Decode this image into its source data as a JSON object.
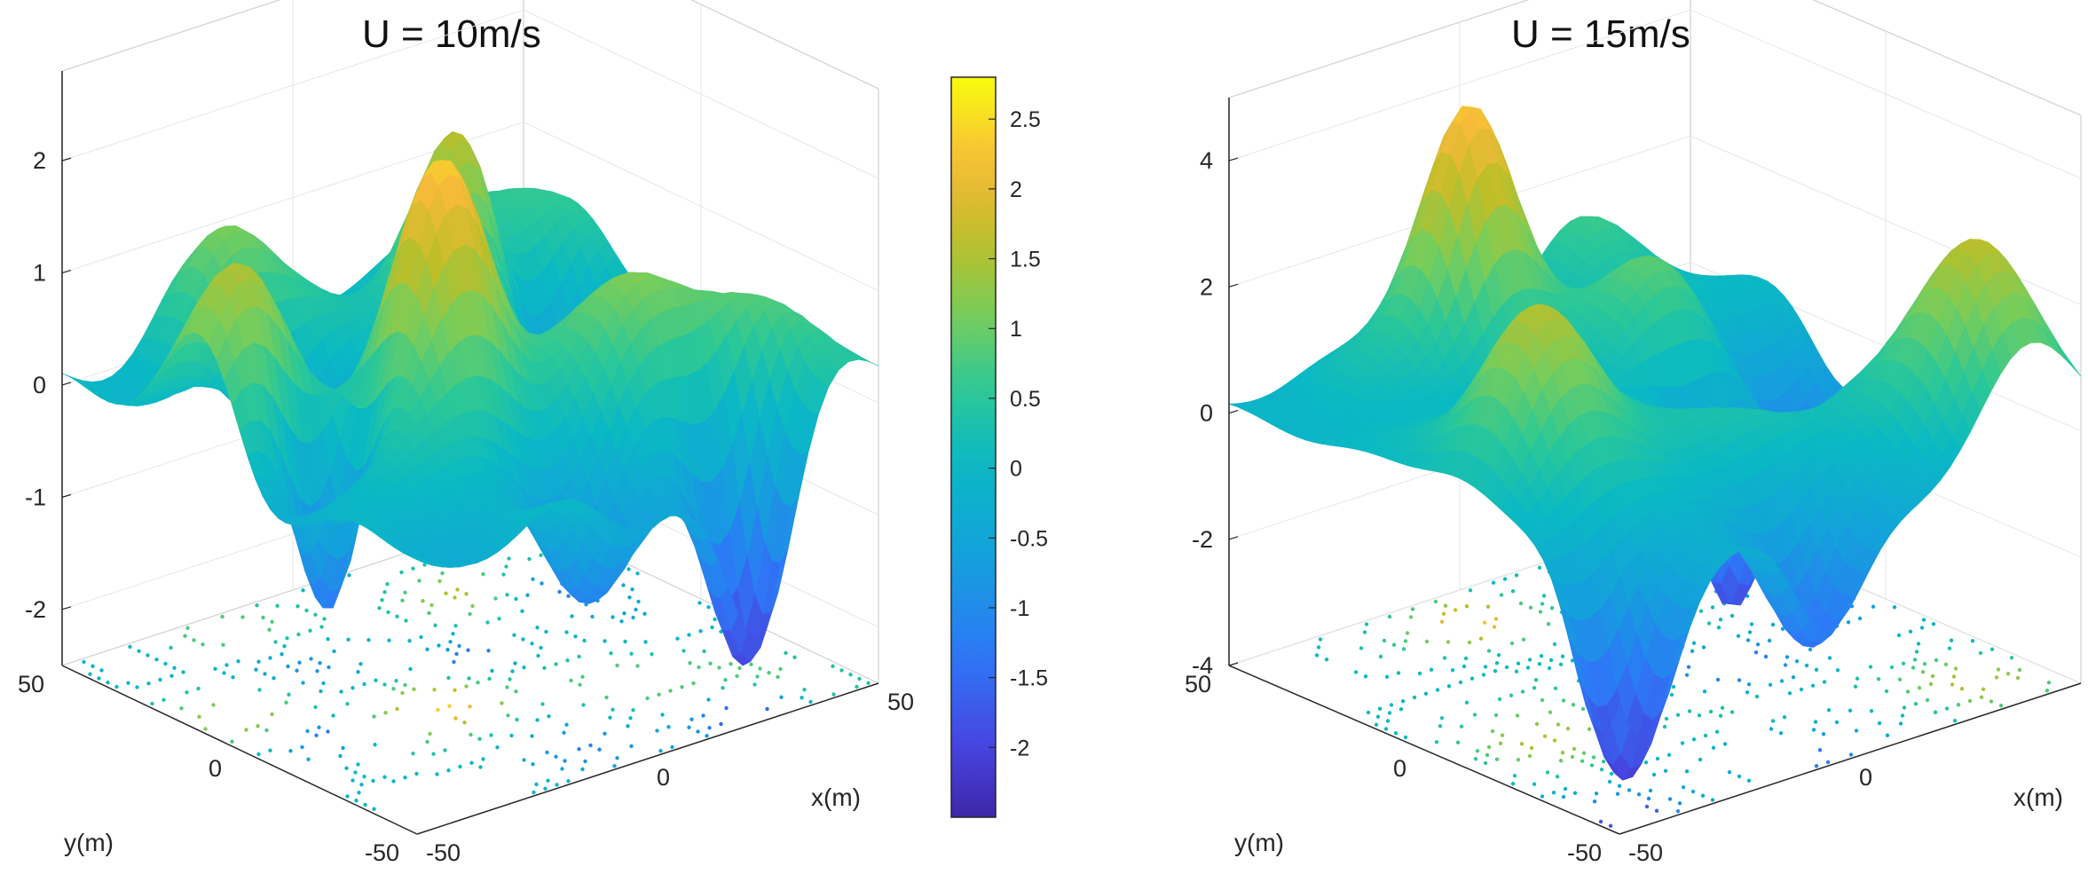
{
  "figure_caption": "",
  "chart_data": [
    {
      "type": "surface3d",
      "title": "U = 10m/s",
      "xlabel": "x(m)",
      "ylabel": "y(m)",
      "zlabel": "",
      "xlim": [
        -50,
        50
      ],
      "ylim": [
        -50,
        50
      ],
      "zlim": [
        -2.5,
        2.8
      ],
      "xticks": [
        -50,
        0,
        50
      ],
      "yticks": [
        -50,
        0,
        50
      ],
      "zticks": [
        -2,
        -1,
        0,
        1,
        2
      ],
      "xtick_labels": [
        "-50",
        "0",
        "50"
      ],
      "ytick_labels": [
        "-50",
        "0",
        "50"
      ],
      "ztick_labels": [
        "-2",
        "-1",
        "0",
        "1",
        "2"
      ],
      "contour_projection": true,
      "z_max": 2.2,
      "z_min": -2.4
    },
    {
      "type": "surface3d",
      "title": "U = 15m/s",
      "xlabel": "x(m)",
      "ylabel": "y(m)",
      "zlabel": "",
      "xlim": [
        -50,
        50
      ],
      "ylim": [
        -50,
        50
      ],
      "zlim": [
        -4,
        5
      ],
      "xticks": [
        -50,
        0,
        50
      ],
      "yticks": [
        -50,
        0,
        50
      ],
      "zticks": [
        -4,
        -2,
        0,
        2,
        4
      ],
      "xtick_labels": [
        "-50",
        "0",
        "50"
      ],
      "ytick_labels": [
        "-50",
        "0",
        "50"
      ],
      "ztick_labels": [
        "-4",
        "-2",
        "0",
        "2",
        "4"
      ],
      "contour_projection": true,
      "z_max": 4.3,
      "z_min": -4.0
    }
  ],
  "colorbar": {
    "colormap": "parula",
    "range": [
      -2.5,
      2.8
    ],
    "ticks": [
      2.5,
      2,
      1.5,
      1,
      0.5,
      0,
      -0.5,
      -1,
      -1.5,
      -2
    ],
    "tick_labels": [
      "2.5",
      "2",
      "1.5",
      "1",
      "0.5",
      "0",
      "-0.5",
      "-1",
      "-1.5",
      "-2"
    ]
  }
}
